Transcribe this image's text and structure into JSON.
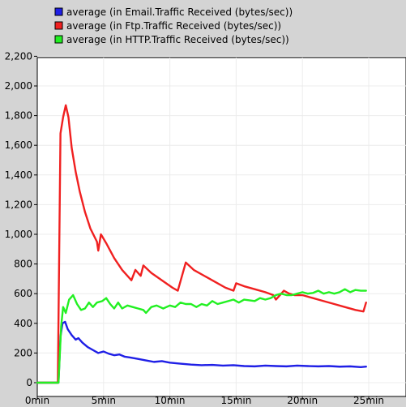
{
  "chart_data": {
    "type": "line",
    "title": "",
    "xlabel": "",
    "ylabel": "",
    "xlim": [
      0,
      25.5
    ],
    "ylim": [
      0,
      2250
    ],
    "x_ticks": [
      0,
      5,
      10,
      15,
      20,
      25
    ],
    "x_tick_labels": [
      "0min",
      "5min",
      "10min",
      "15min",
      "20min",
      "25min"
    ],
    "y_ticks": [
      0,
      200,
      400,
      600,
      800,
      1000,
      1200,
      1400,
      1600,
      1800,
      2000,
      2200
    ],
    "y_tick_labels": [
      "0",
      "200",
      "400",
      "600",
      "800",
      "1,000",
      "1,200",
      "1,400",
      "1,600",
      "1,800",
      "2,000",
      "2,200"
    ],
    "grid": true,
    "legend_position": "top",
    "series": [
      {
        "name": "average (in Email.Traffic Received (bytes/sec))",
        "color": "#1f1fe6",
        "points": [
          [
            0,
            0
          ],
          [
            1.6,
            0
          ],
          [
            1.75,
            310
          ],
          [
            1.9,
            400
          ],
          [
            2.1,
            410
          ],
          [
            2.3,
            360
          ],
          [
            2.6,
            320
          ],
          [
            2.9,
            290
          ],
          [
            3.1,
            300
          ],
          [
            3.4,
            270
          ],
          [
            3.8,
            240
          ],
          [
            4.2,
            220
          ],
          [
            4.6,
            200
          ],
          [
            5.0,
            210
          ],
          [
            5.4,
            195
          ],
          [
            5.8,
            185
          ],
          [
            6.2,
            190
          ],
          [
            6.6,
            175
          ],
          [
            7.0,
            170
          ],
          [
            7.6,
            160
          ],
          [
            8.2,
            150
          ],
          [
            8.8,
            140
          ],
          [
            9.4,
            145
          ],
          [
            10.0,
            135
          ],
          [
            10.8,
            128
          ],
          [
            11.6,
            122
          ],
          [
            12.4,
            118
          ],
          [
            13.2,
            120
          ],
          [
            14.0,
            115
          ],
          [
            14.8,
            118
          ],
          [
            15.6,
            112
          ],
          [
            16.4,
            110
          ],
          [
            17.2,
            115
          ],
          [
            18.0,
            112
          ],
          [
            18.8,
            110
          ],
          [
            19.6,
            115
          ],
          [
            20.4,
            112
          ],
          [
            21.2,
            110
          ],
          [
            22.0,
            112
          ],
          [
            22.8,
            108
          ],
          [
            23.6,
            110
          ],
          [
            24.4,
            105
          ],
          [
            24.8,
            108
          ]
        ]
      },
      {
        "name": "average (in Ftp.Traffic Received (bytes/sec))",
        "color": "#f02020",
        "points": [
          [
            0,
            0
          ],
          [
            1.55,
            0
          ],
          [
            1.75,
            1680
          ],
          [
            1.95,
            1790
          ],
          [
            2.15,
            1870
          ],
          [
            2.35,
            1790
          ],
          [
            2.6,
            1580
          ],
          [
            2.9,
            1420
          ],
          [
            3.2,
            1290
          ],
          [
            3.6,
            1150
          ],
          [
            4.0,
            1040
          ],
          [
            4.5,
            950
          ],
          [
            4.6,
            890
          ],
          [
            4.8,
            1000
          ],
          [
            5.2,
            940
          ],
          [
            5.8,
            840
          ],
          [
            6.4,
            760
          ],
          [
            7.1,
            690
          ],
          [
            7.4,
            760
          ],
          [
            7.8,
            720
          ],
          [
            8.0,
            790
          ],
          [
            8.6,
            740
          ],
          [
            9.4,
            690
          ],
          [
            10.2,
            640
          ],
          [
            10.6,
            620
          ],
          [
            11.2,
            810
          ],
          [
            11.8,
            760
          ],
          [
            12.6,
            720
          ],
          [
            13.4,
            680
          ],
          [
            14.2,
            640
          ],
          [
            14.8,
            620
          ],
          [
            15.0,
            670
          ],
          [
            15.6,
            650
          ],
          [
            16.4,
            630
          ],
          [
            17.2,
            610
          ],
          [
            17.8,
            590
          ],
          [
            18.0,
            560
          ],
          [
            18.6,
            620
          ],
          [
            19.0,
            600
          ],
          [
            19.4,
            590
          ],
          [
            20.0,
            590
          ],
          [
            20.8,
            570
          ],
          [
            21.6,
            550
          ],
          [
            22.4,
            530
          ],
          [
            23.2,
            510
          ],
          [
            24.0,
            490
          ],
          [
            24.6,
            480
          ],
          [
            24.8,
            540
          ]
        ]
      },
      {
        "name": "average (in HTTP.Traffic Received (bytes/sec))",
        "color": "#22f022",
        "points": [
          [
            0,
            0
          ],
          [
            1.6,
            0
          ],
          [
            1.8,
            380
          ],
          [
            1.95,
            510
          ],
          [
            2.15,
            470
          ],
          [
            2.4,
            560
          ],
          [
            2.7,
            590
          ],
          [
            3.0,
            530
          ],
          [
            3.3,
            490
          ],
          [
            3.6,
            500
          ],
          [
            3.9,
            540
          ],
          [
            4.2,
            510
          ],
          [
            4.5,
            540
          ],
          [
            4.9,
            550
          ],
          [
            5.2,
            570
          ],
          [
            5.5,
            530
          ],
          [
            5.8,
            500
          ],
          [
            6.1,
            540
          ],
          [
            6.4,
            500
          ],
          [
            6.8,
            520
          ],
          [
            7.2,
            510
          ],
          [
            7.6,
            500
          ],
          [
            8.0,
            490
          ],
          [
            8.2,
            470
          ],
          [
            8.6,
            510
          ],
          [
            9.0,
            520
          ],
          [
            9.5,
            500
          ],
          [
            10.0,
            520
          ],
          [
            10.4,
            510
          ],
          [
            10.8,
            540
          ],
          [
            11.2,
            530
          ],
          [
            11.6,
            530
          ],
          [
            12.0,
            510
          ],
          [
            12.4,
            530
          ],
          [
            12.8,
            520
          ],
          [
            13.2,
            550
          ],
          [
            13.6,
            530
          ],
          [
            14.0,
            540
          ],
          [
            14.4,
            550
          ],
          [
            14.8,
            560
          ],
          [
            15.2,
            540
          ],
          [
            15.6,
            560
          ],
          [
            16.0,
            555
          ],
          [
            16.4,
            550
          ],
          [
            16.8,
            570
          ],
          [
            17.2,
            560
          ],
          [
            17.6,
            570
          ],
          [
            18.0,
            590
          ],
          [
            18.4,
            600
          ],
          [
            18.8,
            590
          ],
          [
            19.2,
            590
          ],
          [
            19.6,
            600
          ],
          [
            20.0,
            610
          ],
          [
            20.4,
            600
          ],
          [
            20.8,
            605
          ],
          [
            21.2,
            620
          ],
          [
            21.6,
            600
          ],
          [
            22.0,
            610
          ],
          [
            22.4,
            600
          ],
          [
            22.8,
            610
          ],
          [
            23.2,
            630
          ],
          [
            23.6,
            610
          ],
          [
            24.0,
            625
          ],
          [
            24.4,
            620
          ],
          [
            24.8,
            620
          ]
        ]
      }
    ]
  }
}
